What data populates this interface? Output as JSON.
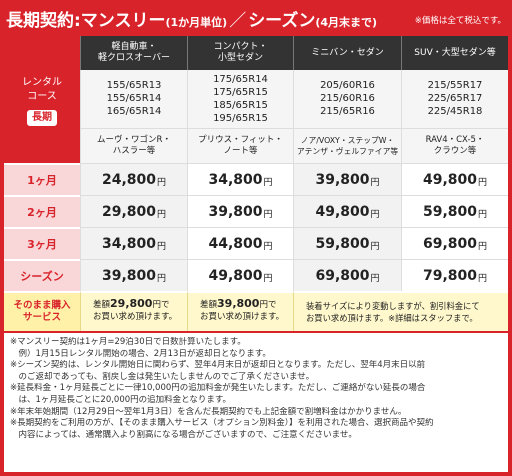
{
  "header": {
    "title": "長期契約:マンスリー",
    "title_paren": "(1か月単位)",
    "slash": "／",
    "title2": "シーズン",
    "title2_paren": "(4月末まで)",
    "tax_note": "※価格は全て税込です。"
  },
  "rental_label": {
    "line1": "レンタル",
    "line2": "コース",
    "badge": "長期"
  },
  "columns": [
    {
      "line1": "軽自動車・",
      "line2": "軽クロスオーバー",
      "tires": [
        "155/65R13",
        "155/65R14",
        "165/65R14"
      ],
      "models_1": "ムーヴ・ワゴンR・",
      "models_2": "ハスラー等"
    },
    {
      "line1": "コンパクト・",
      "line2": "小型セダン",
      "tires": [
        "175/65R14",
        "175/65R15",
        "185/65R15",
        "195/65R15"
      ],
      "models_1": "プリウス・フィット・",
      "models_2": "ノート等"
    },
    {
      "line1": "ミニバン・セダン",
      "line2": "",
      "tires": [
        "205/60R16",
        "215/60R16",
        "215/65R16"
      ],
      "models_1": "ノア/VOXY・ステップW・",
      "models_2": "アテンザ・ヴェルファイア等"
    },
    {
      "line1": "SUV・大型セダン等",
      "line2": "",
      "tires": [
        "215/55R17",
        "225/65R17",
        "225/45R18"
      ],
      "models_1": "RAV4・CX-5・",
      "models_2": "クラウン等"
    }
  ],
  "yen": "円",
  "rows": [
    {
      "label": "1ヶ月",
      "prices": [
        "24,800",
        "34,800",
        "39,800",
        "49,800"
      ]
    },
    {
      "label": "2ヶ月",
      "prices": [
        "29,800",
        "39,800",
        "49,800",
        "59,800"
      ]
    },
    {
      "label": "3ヶ月",
      "prices": [
        "34,800",
        "44,800",
        "59,800",
        "69,800"
      ]
    },
    {
      "label": "シーズン",
      "prices": [
        "39,800",
        "49,800",
        "69,800",
        "79,800"
      ]
    }
  ],
  "service": {
    "label_1": "そのまま購入",
    "label_2": "サービス",
    "c1_prefix": "差額",
    "c1_price": "29,800",
    "c1_suffix": "円で",
    "c1_line2": "お買い求め頂けます。",
    "c2_prefix": "差額",
    "c2_price": "39,800",
    "c2_suffix": "円で",
    "c2_line2": "お買い求め頂けます。",
    "c3_line1": "装着サイズにより変動しますが、割引料金にて",
    "c3_line2": "お買い求め頂けます。※詳細はスタッフまで。"
  },
  "notes": [
    "※マンスリー契約は1ヶ月=29泊30日で日数計算いたします。",
    "　例）1月15日レンタル開始の場合、2月13日が返却日となります。",
    "※シーズン契約は、レンタル開始日に関わらず、翌年4月末日が返却日となります。ただし、翌年4月末日以前",
    "　のご返却であっても、割戻し金は発生いたしませんのでご了承くださいませ。",
    "※延長料金・1ヶ月延長ごとに一律10,000円の追加料金が発生いたします。ただし、ご連絡がない延長の場合",
    "　は、1ヶ月延長ごとに20,000円の追加料金となります。",
    "※年末年始期間（12月29日〜翌年1月3日）を含んだ長期契約でも上記金額で割増料金はかかりません。",
    "※長期契約をご利用の方が、【そのまま購入サービス（オプション別料金）】を利用された場合、選択商品や契約",
    "　内容によっては、通常購入より割高になる場合がございますので、ご注意くださいませ。"
  ]
}
